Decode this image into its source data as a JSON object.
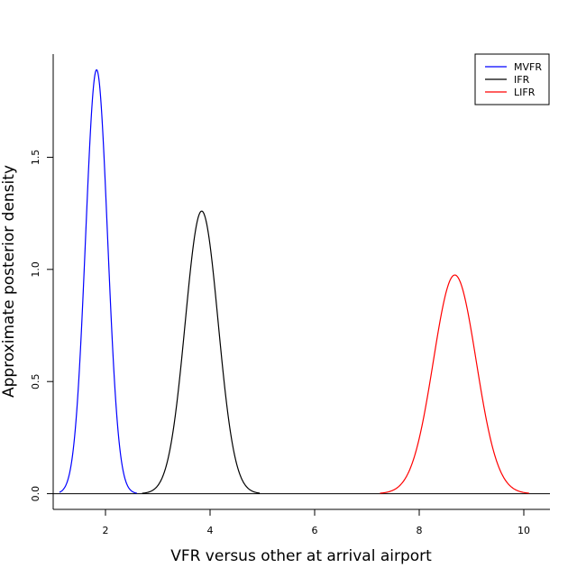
{
  "chart_data": {
    "type": "line",
    "title": "",
    "xlabel": "VFR versus other at arrival airport",
    "ylabel": "Approximate posterior density",
    "xlim": [
      1.0,
      10.5
    ],
    "ylim": [
      -0.07,
      1.96
    ],
    "x_ticks": [
      2,
      4,
      6,
      8,
      10
    ],
    "y_ticks": [
      0.0,
      0.5,
      1.0,
      1.5
    ],
    "x_tick_labels": [
      "2",
      "4",
      "6",
      "8",
      "10"
    ],
    "y_tick_labels": [
      "0.0",
      "0.5",
      "1.0",
      "1.5"
    ],
    "grid": false,
    "legend_position": "top-right",
    "baseline": 0.0,
    "series": [
      {
        "name": "MVFR",
        "color": "#0000ff",
        "mean": 1.83,
        "sd": 0.21,
        "peak": 1.89,
        "x_range": [
          1.12,
          2.6
        ]
      },
      {
        "name": "IFR",
        "color": "#000000",
        "mean": 3.84,
        "sd": 0.315,
        "peak": 1.26,
        "x_range": [
          2.7,
          4.95
        ]
      },
      {
        "name": "LIFR",
        "color": "#ff0000",
        "mean": 8.68,
        "sd": 0.41,
        "peak": 0.975,
        "x_range": [
          7.25,
          10.1
        ]
      }
    ]
  }
}
